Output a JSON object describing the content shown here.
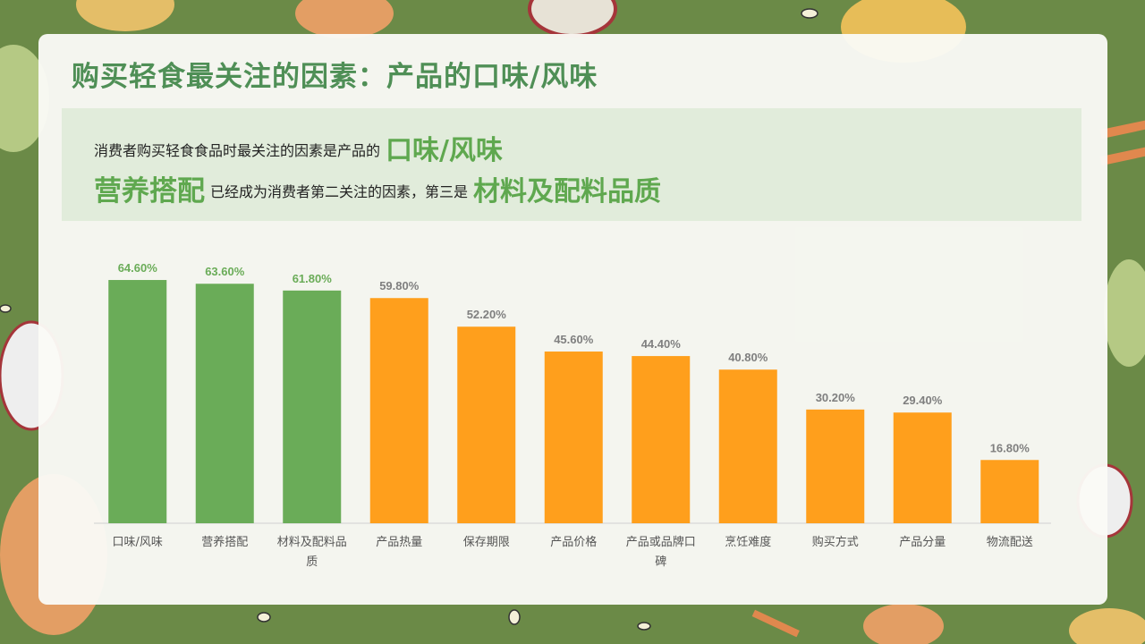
{
  "slide": {
    "title": "购买轻食最关注的因素：产品的口味/风味",
    "banner": {
      "line1_text": "消费者购买轻食食品时最关注的因素是产品的",
      "line1_highlight": "口味/风味",
      "line2_highlight_1": "营养搭配",
      "line2_text": "已经成为消费者第二关注的因素，第三是",
      "line2_highlight_2": "材料及配料品质"
    }
  },
  "colors": {
    "background": "#6b8a47",
    "title": "#4f8f56",
    "highlight": "#5fa84f",
    "bar_top3": "#6aac58",
    "bar_rest": "#ff9f1c",
    "label_top3": "#6aac58",
    "label_rest": "#7f7f7f"
  },
  "chart_data": {
    "type": "bar",
    "title": "",
    "xlabel": "",
    "ylabel": "",
    "ylim": [
      0,
      70
    ],
    "grid": false,
    "categories": [
      "口味/风味",
      "营养搭配",
      "材料及配料品质",
      "产品热量",
      "保存期限",
      "产品价格",
      "产品或品牌口碑",
      "烹饪难度",
      "购买方式",
      "产品分量",
      "物流配送"
    ],
    "values": [
      64.6,
      63.6,
      61.8,
      59.8,
      52.2,
      45.6,
      44.4,
      40.8,
      30.2,
      29.4,
      16.8
    ],
    "value_labels": [
      "64.60%",
      "63.60%",
      "61.80%",
      "59.80%",
      "52.20%",
      "45.60%",
      "44.40%",
      "40.80%",
      "30.20%",
      "29.40%",
      "16.80%"
    ],
    "highlighted_count": 3
  }
}
